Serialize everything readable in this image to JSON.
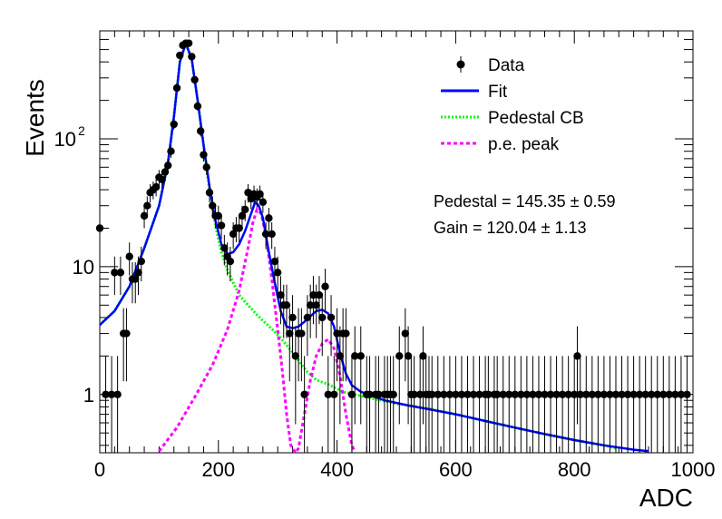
{
  "chart_data": {
    "type": "scatter",
    "xlabel": "ADC",
    "ylabel": "Events",
    "xlim": [
      0,
      1000
    ],
    "ylim": [
      0.35,
      700
    ],
    "yscale": "log",
    "x_ticks": [
      0,
      200,
      400,
      600,
      800,
      1000
    ],
    "y_ticks": [
      {
        "value": 1,
        "label": "1"
      },
      {
        "value": 10,
        "label": "10"
      },
      {
        "value": 100,
        "label": "10",
        "sup": "2"
      }
    ],
    "grid": false,
    "legend_position": "top-right",
    "legend": [
      {
        "label": "Data",
        "style": "marker",
        "color": "#000000"
      },
      {
        "label": "Fit",
        "style": "solid",
        "color": "#0000ff"
      },
      {
        "label": "Pedestal CB",
        "style": "dotted",
        "color": "#00ff00"
      },
      {
        "label": "p.e. peak",
        "style": "dashed",
        "color": "#ff00ff"
      }
    ],
    "annotations": [
      {
        "text": "Pedestal = 145.35 ± 0.59"
      },
      {
        "text": "Gain = 120.04 ± 1.13"
      }
    ],
    "series": [
      {
        "name": "Data",
        "points": [
          [
            0,
            20
          ],
          [
            10,
            1
          ],
          [
            20,
            1
          ],
          [
            25,
            9
          ],
          [
            30,
            1
          ],
          [
            35,
            9
          ],
          [
            40,
            3
          ],
          [
            45,
            3
          ],
          [
            50,
            12
          ],
          [
            55,
            8
          ],
          [
            60,
            8
          ],
          [
            65,
            9
          ],
          [
            70,
            11
          ],
          [
            75,
            25
          ],
          [
            80,
            30
          ],
          [
            85,
            38
          ],
          [
            90,
            40
          ],
          [
            95,
            42
          ],
          [
            100,
            50
          ],
          [
            105,
            48
          ],
          [
            110,
            55
          ],
          [
            115,
            62
          ],
          [
            120,
            80
          ],
          [
            125,
            130
          ],
          [
            130,
            250
          ],
          [
            135,
            450
          ],
          [
            140,
            540
          ],
          [
            145,
            560
          ],
          [
            150,
            560
          ],
          [
            155,
            440
          ],
          [
            160,
            290
          ],
          [
            165,
            180
          ],
          [
            170,
            115
          ],
          [
            175,
            75
          ],
          [
            180,
            60
          ],
          [
            185,
            38
          ],
          [
            190,
            30
          ],
          [
            195,
            25
          ],
          [
            200,
            25
          ],
          [
            205,
            21
          ],
          [
            210,
            14
          ],
          [
            215,
            12
          ],
          [
            220,
            11
          ],
          [
            225,
            18
          ],
          [
            230,
            20
          ],
          [
            235,
            20
          ],
          [
            240,
            25
          ],
          [
            245,
            28
          ],
          [
            250,
            38
          ],
          [
            255,
            34
          ],
          [
            260,
            37
          ],
          [
            265,
            35
          ],
          [
            270,
            37
          ],
          [
            275,
            32
          ],
          [
            280,
            18
          ],
          [
            285,
            24
          ],
          [
            290,
            18
          ],
          [
            295,
            11
          ],
          [
            300,
            9
          ],
          [
            305,
            6
          ],
          [
            310,
            5
          ],
          [
            315,
            5
          ],
          [
            320,
            3
          ],
          [
            325,
            4
          ],
          [
            330,
            2
          ],
          [
            335,
            3
          ],
          [
            340,
            3
          ],
          [
            345,
            1
          ],
          [
            350,
            4
          ],
          [
            355,
            5
          ],
          [
            360,
            6
          ],
          [
            365,
            5
          ],
          [
            370,
            6
          ],
          [
            375,
            4
          ],
          [
            380,
            7
          ],
          [
            385,
            1
          ],
          [
            390,
            4
          ],
          [
            395,
            1
          ],
          [
            400,
            3
          ],
          [
            405,
            2
          ],
          [
            410,
            3
          ],
          [
            415,
            3
          ],
          [
            425,
            1
          ],
          [
            430,
            2
          ],
          [
            440,
            2
          ],
          [
            450,
            1
          ],
          [
            455,
            1
          ],
          [
            465,
            1
          ],
          [
            470,
            1
          ],
          [
            480,
            1
          ],
          [
            485,
            1
          ],
          [
            490,
            1
          ],
          [
            495,
            1
          ],
          [
            505,
            2
          ],
          [
            515,
            3
          ],
          [
            520,
            2
          ],
          [
            525,
            1
          ],
          [
            530,
            1
          ],
          [
            540,
            1
          ],
          [
            545,
            2
          ],
          [
            550,
            1
          ],
          [
            555,
            1
          ],
          [
            560,
            1
          ],
          [
            570,
            1
          ],
          [
            580,
            1
          ],
          [
            590,
            1
          ],
          [
            600,
            1
          ],
          [
            610,
            1
          ],
          [
            620,
            1
          ],
          [
            630,
            1
          ],
          [
            640,
            1
          ],
          [
            650,
            1
          ],
          [
            655,
            1
          ],
          [
            665,
            1
          ],
          [
            670,
            1
          ],
          [
            680,
            1
          ],
          [
            690,
            1
          ],
          [
            700,
            1
          ],
          [
            710,
            1
          ],
          [
            720,
            1
          ],
          [
            730,
            1
          ],
          [
            740,
            1
          ],
          [
            750,
            1
          ],
          [
            760,
            1
          ],
          [
            770,
            1
          ],
          [
            780,
            1
          ],
          [
            790,
            1
          ],
          [
            800,
            1
          ],
          [
            805,
            2
          ],
          [
            810,
            1
          ],
          [
            820,
            1
          ],
          [
            830,
            1
          ],
          [
            840,
            1
          ],
          [
            850,
            1
          ],
          [
            860,
            1
          ],
          [
            870,
            1
          ],
          [
            880,
            1
          ],
          [
            890,
            1
          ],
          [
            900,
            1
          ],
          [
            910,
            1
          ],
          [
            920,
            1
          ],
          [
            930,
            1
          ],
          [
            940,
            1
          ],
          [
            950,
            1
          ],
          [
            960,
            1
          ],
          [
            970,
            1
          ],
          [
            980,
            1
          ],
          [
            990,
            1
          ]
        ]
      },
      {
        "name": "Fit",
        "points": [
          [
            0,
            3.5
          ],
          [
            25,
            4.5
          ],
          [
            50,
            7
          ],
          [
            75,
            14
          ],
          [
            100,
            30
          ],
          [
            115,
            65
          ],
          [
            125,
            150
          ],
          [
            135,
            400
          ],
          [
            145,
            560
          ],
          [
            155,
            420
          ],
          [
            165,
            200
          ],
          [
            175,
            90
          ],
          [
            185,
            42
          ],
          [
            195,
            23
          ],
          [
            205,
            15
          ],
          [
            215,
            12.5
          ],
          [
            225,
            13
          ],
          [
            235,
            15
          ],
          [
            245,
            19
          ],
          [
            255,
            26
          ],
          [
            262,
            32
          ],
          [
            268,
            30
          ],
          [
            275,
            24
          ],
          [
            285,
            13
          ],
          [
            295,
            7.5
          ],
          [
            305,
            4.5
          ],
          [
            315,
            3.4
          ],
          [
            325,
            3.3
          ],
          [
            335,
            3.4
          ],
          [
            345,
            3.7
          ],
          [
            355,
            4.1
          ],
          [
            365,
            4.5
          ],
          [
            375,
            4.6
          ],
          [
            385,
            4.3
          ],
          [
            395,
            3.4
          ],
          [
            405,
            2.1
          ],
          [
            415,
            1.45
          ],
          [
            425,
            1.18
          ],
          [
            440,
            1.05
          ],
          [
            480,
            0.9
          ],
          [
            520,
            0.82
          ],
          [
            560,
            0.76
          ],
          [
            600,
            0.7
          ],
          [
            650,
            0.62
          ],
          [
            700,
            0.55
          ],
          [
            750,
            0.49
          ],
          [
            800,
            0.44
          ],
          [
            850,
            0.4
          ],
          [
            900,
            0.37
          ],
          [
            925,
            0.36
          ]
        ]
      },
      {
        "name": "Pedestal CB",
        "points": [
          [
            0,
            3.5
          ],
          [
            25,
            4.5
          ],
          [
            50,
            7
          ],
          [
            75,
            14
          ],
          [
            100,
            30
          ],
          [
            115,
            65
          ],
          [
            125,
            150
          ],
          [
            135,
            400
          ],
          [
            145,
            560
          ],
          [
            155,
            420
          ],
          [
            165,
            200
          ],
          [
            175,
            90
          ],
          [
            185,
            40
          ],
          [
            195,
            21
          ],
          [
            205,
            13
          ],
          [
            215,
            9.5
          ],
          [
            225,
            7.5
          ],
          [
            235,
            6
          ],
          [
            250,
            5
          ],
          [
            265,
            4.2
          ],
          [
            280,
            3.6
          ],
          [
            295,
            3.1
          ],
          [
            310,
            2.6
          ],
          [
            330,
            2.0
          ],
          [
            345,
            1.6
          ],
          [
            350,
            1.5
          ],
          [
            365,
            1.3
          ],
          [
            385,
            1.2
          ],
          [
            410,
            1.05
          ],
          [
            450,
            0.95
          ],
          [
            500,
            0.85
          ],
          [
            550,
            0.78
          ],
          [
            600,
            0.7
          ],
          [
            650,
            0.62
          ],
          [
            700,
            0.55
          ],
          [
            750,
            0.49
          ],
          [
            800,
            0.44
          ],
          [
            850,
            0.4
          ],
          [
            870,
            0.38
          ]
        ]
      },
      {
        "name": "p.e. peak",
        "points": [
          [
            100,
            0.36
          ],
          [
            130,
            0.55
          ],
          [
            160,
            0.95
          ],
          [
            190,
            1.7
          ],
          [
            215,
            3.2
          ],
          [
            235,
            6.5
          ],
          [
            250,
            14
          ],
          [
            258,
            22
          ],
          [
            265,
            28
          ],
          [
            272,
            26
          ],
          [
            280,
            18
          ],
          [
            290,
            8
          ],
          [
            300,
            3.2
          ],
          [
            308,
            1.5
          ],
          [
            315,
            0.7
          ],
          [
            322,
            0.4
          ],
          [
            330,
            0.35
          ],
          [
            335,
            0.38
          ],
          [
            345,
            0.7
          ],
          [
            355,
            1.3
          ],
          [
            365,
            2.0
          ],
          [
            375,
            2.5
          ],
          [
            385,
            2.7
          ],
          [
            395,
            2.3
          ],
          [
            405,
            1.4
          ],
          [
            415,
            0.7
          ],
          [
            425,
            0.4
          ],
          [
            430,
            0.36
          ]
        ]
      }
    ]
  }
}
